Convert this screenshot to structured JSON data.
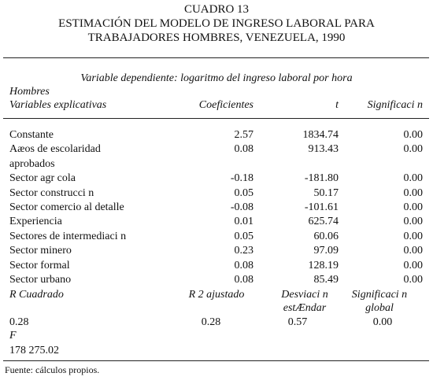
{
  "header": {
    "title_lines": [
      "CUADRO 13",
      "ESTIMACIÓN DEL MODELO DE INGRESO LABORAL PARA",
      "TRABAJADORES HOMBRES, VENEZUELA, 1990"
    ]
  },
  "table": {
    "dependent": "Variable dependiente: logaritmo del ingreso laboral por hora",
    "group": "Hombres",
    "columns": [
      "Variables explicativas",
      "Coeficientes",
      "t",
      "Significaci n"
    ],
    "rows": [
      {
        "label": [
          "Constante"
        ],
        "coef": "2.57",
        "t": "1834.74",
        "sig": "0.00"
      },
      {
        "label": [
          "Aæos de escolaridad",
          "aprobados"
        ],
        "coef": "0.08",
        "t": "913.43",
        "sig": "0.00"
      },
      {
        "label": [
          "Sector agr cola"
        ],
        "coef": "-0.18",
        "t": "-181.80",
        "sig": "0.00"
      },
      {
        "label": [
          "Sector construcci n"
        ],
        "coef": "0.05",
        "t": "50.17",
        "sig": "0.00"
      },
      {
        "label": [
          "Sector comercio al detalle"
        ],
        "coef": "-0.08",
        "t": "-101.61",
        "sig": "0.00"
      },
      {
        "label": [
          "Experiencia"
        ],
        "coef": "0.01",
        "t": "625.74",
        "sig": "0.00"
      },
      {
        "label": [
          "Sectores de intermediaci n"
        ],
        "coef": "0.05",
        "t": "60.06",
        "sig": "0.00"
      },
      {
        "label": [
          "Sector minero"
        ],
        "coef": "0.23",
        "t": "97.09",
        "sig": "0.00"
      },
      {
        "label": [
          "Sector formal"
        ],
        "coef": "0.08",
        "t": "128.19",
        "sig": "0.00"
      },
      {
        "label": [
          "Sector urbano"
        ],
        "coef": "0.08",
        "t": "85.49",
        "sig": "0.00"
      }
    ],
    "stats_headers": [
      [
        "R Cuadrado"
      ],
      [
        "R 2 ajustado"
      ],
      [
        "Desviaci n",
        "estÆndar"
      ],
      [
        "Significaci n",
        "global"
      ]
    ],
    "stats_values": [
      "0.28",
      "0.28",
      "0.57",
      "0.00"
    ],
    "f_label": "F",
    "f_value": "178 275.02"
  },
  "footer": {
    "source": "Fuente: cálculos propios."
  }
}
